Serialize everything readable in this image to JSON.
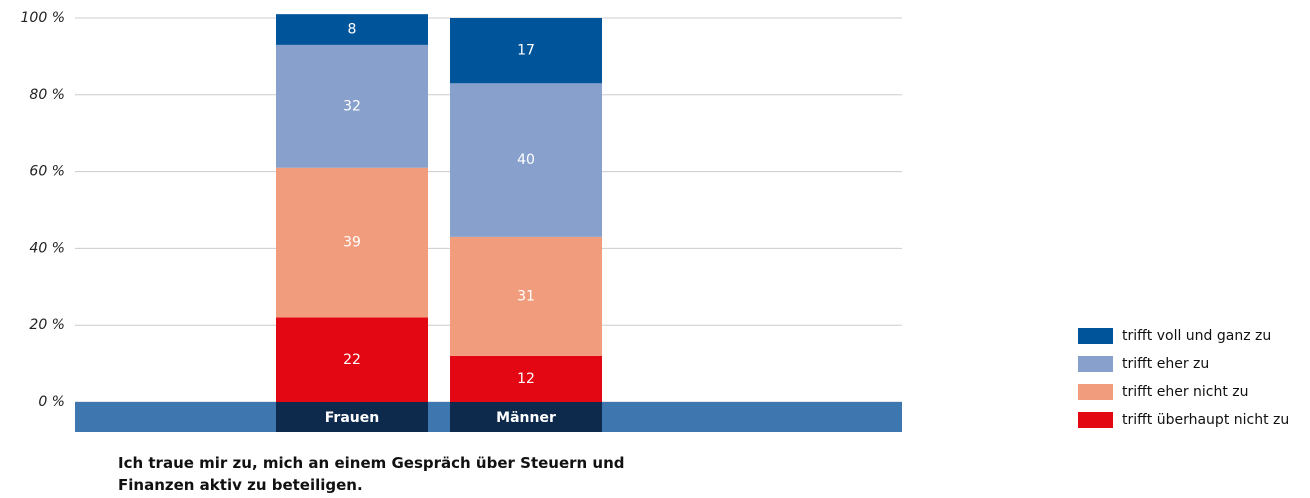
{
  "chart_data": {
    "type": "stacked_bar",
    "title": "Ich traue mir zu, mich an einem Gespräch über Steuern und Finanzen aktiv zu beteiligen.",
    "categories": [
      "Frauen",
      "Männer"
    ],
    "series": [
      {
        "name": "trifft überhaupt nicht zu",
        "color": "#e30613",
        "values": [
          22,
          12
        ]
      },
      {
        "name": "trifft eher nicht zu",
        "color": "#f29c7e",
        "values": [
          39,
          31
        ]
      },
      {
        "name": "trifft eher zu",
        "color": "#87a1cc",
        "values": [
          32,
          40
        ]
      },
      {
        "name": "trifft voll und ganz zu",
        "color": "#00559a",
        "values": [
          8,
          17
        ]
      }
    ],
    "ylim": [
      0,
      100
    ],
    "yticks": [
      {
        "value": 0,
        "label": "0 %"
      },
      {
        "value": 20,
        "label": "20 %"
      },
      {
        "value": 40,
        "label": "40 %"
      },
      {
        "value": 60,
        "label": "60 %"
      },
      {
        "value": 80,
        "label": "80 %"
      },
      {
        "value": 100,
        "label": "100 %"
      }
    ],
    "grid": true,
    "legend": "right"
  }
}
